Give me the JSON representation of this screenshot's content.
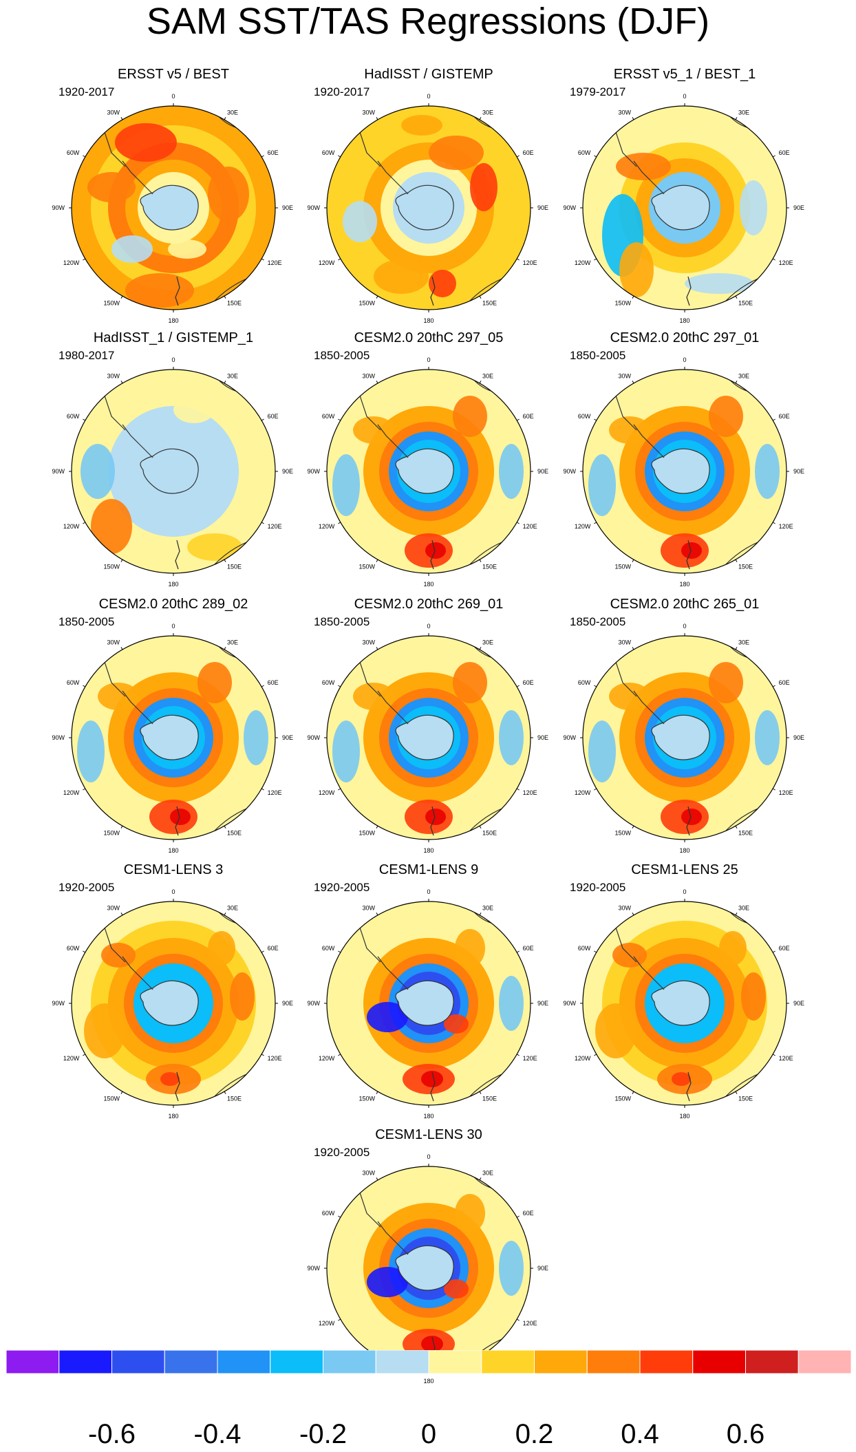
{
  "title": "SAM SST/TAS Regressions (DJF)",
  "longitude_labels": [
    "0",
    "30E",
    "60E",
    "90E",
    "120E",
    "150E",
    "180",
    "150W",
    "120W",
    "90W",
    "60W",
    "30W"
  ],
  "panels": [
    {
      "title": "ERSST v5 / BEST",
      "period": "1920-2017",
      "pattern": "obs_warm"
    },
    {
      "title": "HadISST / GISTEMP",
      "period": "1920-2017",
      "pattern": "obs_mixed"
    },
    {
      "title": "ERSST v5_1 / BEST_1",
      "period": "1979-2017",
      "pattern": "obs_recent"
    },
    {
      "title": "HadISST_1 / GISTEMP_1",
      "period": "1980-2017",
      "pattern": "obs_recent_b"
    },
    {
      "title": "CESM2.0 20thC 297_05",
      "period": "1850-2005",
      "pattern": "model"
    },
    {
      "title": "CESM2.0 20thC 297_01",
      "period": "1850-2005",
      "pattern": "model"
    },
    {
      "title": "CESM2.0 20thC 289_02",
      "period": "1850-2005",
      "pattern": "model"
    },
    {
      "title": "CESM2.0 20thC 269_01",
      "period": "1850-2005",
      "pattern": "model"
    },
    {
      "title": "CESM2.0 20thC 265_01",
      "period": "1850-2005",
      "pattern": "model"
    },
    {
      "title": "CESM1-LENS 3",
      "period": "1920-2005",
      "pattern": "lens"
    },
    {
      "title": "CESM1-LENS 9",
      "period": "1920-2005",
      "pattern": "lens_strong"
    },
    {
      "title": "CESM1-LENS 25",
      "period": "1920-2005",
      "pattern": "lens"
    },
    {
      "title": "CESM1-LENS 30",
      "period": "1920-2005",
      "pattern": "lens_strong"
    }
  ],
  "colorbar": {
    "colors": [
      "#8e1bf0",
      "#1a1aff",
      "#2e4ff0",
      "#3873eb",
      "#2192f6",
      "#0bbdf8",
      "#79c9f3",
      "#b6ddf2",
      "#fff59c",
      "#ffd429",
      "#ffa80a",
      "#ff7d0a",
      "#ff3d0a",
      "#e80000",
      "#cf1f1f",
      "#ffb3b3"
    ],
    "tick_labels": [
      "-0.6",
      "-0.4",
      "-0.2",
      "0",
      "0.2",
      "0.4",
      "0.6"
    ]
  }
}
